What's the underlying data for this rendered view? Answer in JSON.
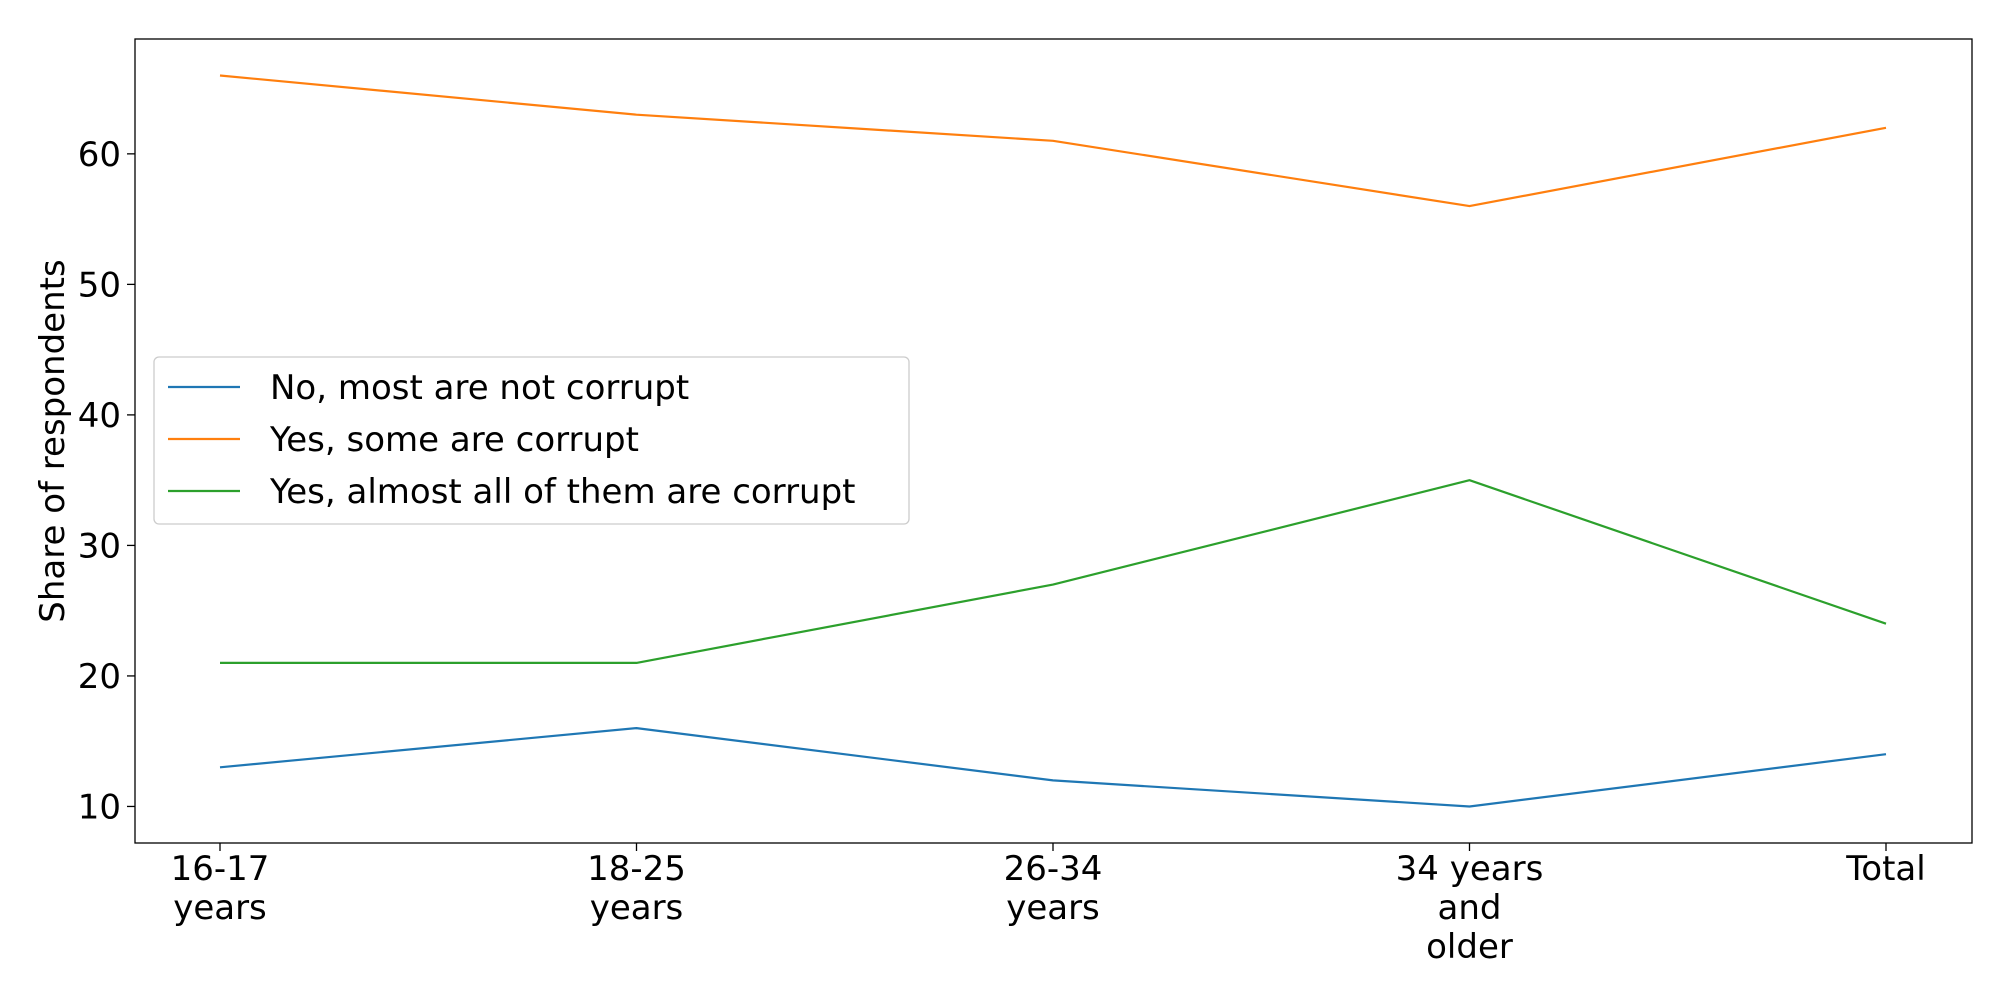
{
  "chart_data": {
    "type": "line",
    "title": "",
    "xlabel": "",
    "ylabel": "Share of respondents",
    "categories": [
      [
        "16-17",
        "years"
      ],
      [
        "18-25",
        "years"
      ],
      [
        "26-34",
        "years"
      ],
      [
        "34 years",
        "and",
        "older"
      ],
      [
        "Total"
      ]
    ],
    "ylim": [
      7.2,
      68.8
    ],
    "yticks": [
      10,
      20,
      30,
      40,
      50,
      60
    ],
    "grid": false,
    "legend_position": "center-left",
    "series": [
      {
        "name": "No, most are not corrupt",
        "color": "#1f77b4",
        "values": [
          13,
          16,
          12,
          10,
          14
        ]
      },
      {
        "name": "Yes, some are corrupt",
        "color": "#ff7f0e",
        "values": [
          66,
          63,
          61,
          56,
          62
        ]
      },
      {
        "name": "Yes, almost all of them are corrupt",
        "color": "#2ca02c",
        "values": [
          21,
          21,
          27,
          35,
          24
        ]
      }
    ]
  }
}
